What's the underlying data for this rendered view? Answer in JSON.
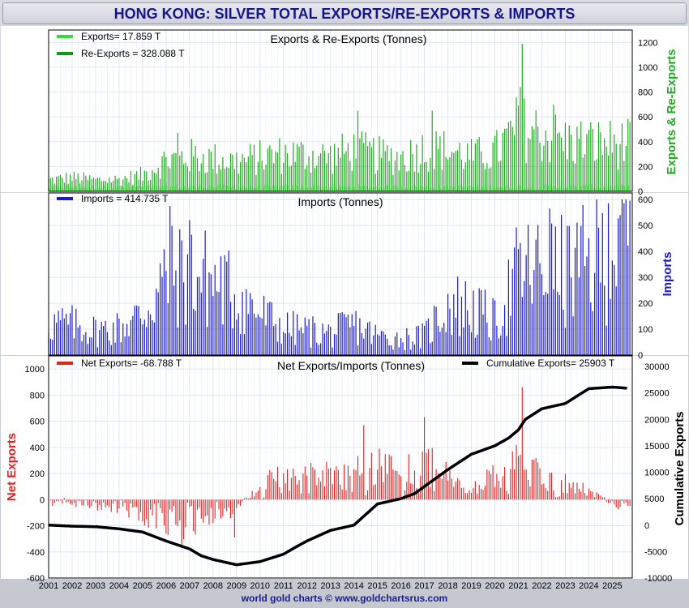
{
  "title": "HONG KONG: SILVER TOTAL EXPORTS/RE-EXPORTS & IMPORTS",
  "footer": "world gold charts © www.goldchartsrus.com",
  "chart_data": [
    {
      "type": "bar",
      "panel": "exports",
      "title": "Exports & Re-Exports (Tonnes)",
      "ylabel": "Exports & Re-Exports",
      "ylim": [
        0,
        1300
      ],
      "yticks": [
        0,
        200,
        400,
        600,
        800,
        1000,
        1200
      ],
      "ytick_labels": [
        "0",
        "200",
        "400",
        "600",
        "800",
        "1000",
        "1200"
      ],
      "legend": [
        {
          "label": "Exports= 17.859 T",
          "color": "#33dd33"
        },
        {
          "label": "Re-Exports = 328.088 T",
          "color": "#119911"
        }
      ],
      "series": [
        {
          "name": "Exports",
          "color": "#33dd33",
          "note": "monthly, small values"
        },
        {
          "name": "Re-Exports",
          "color": "#119911",
          "note": "monthly"
        }
      ],
      "anchors_year_level": [
        [
          2001,
          90
        ],
        [
          2002,
          110
        ],
        [
          2003,
          90
        ],
        [
          2004,
          95
        ],
        [
          2005,
          130
        ],
        [
          2006,
          250
        ],
        [
          2007,
          280
        ],
        [
          2008,
          260
        ],
        [
          2009,
          240
        ],
        [
          2010,
          270
        ],
        [
          2011,
          300
        ],
        [
          2012,
          290
        ],
        [
          2013,
          280
        ],
        [
          2014,
          330
        ],
        [
          2015,
          290
        ],
        [
          2016,
          270
        ],
        [
          2017,
          340
        ],
        [
          2018,
          330
        ],
        [
          2019,
          280
        ],
        [
          2020,
          310
        ],
        [
          2021,
          520
        ],
        [
          2022,
          460
        ],
        [
          2023,
          400
        ],
        [
          2024,
          390
        ],
        [
          2025.6,
          380
        ]
      ],
      "peaks": [
        {
          "x": 2021.2,
          "value": 1190
        },
        {
          "x": 2021.1,
          "value": 840
        },
        {
          "x": 2006.5,
          "value": 470
        },
        {
          "x": 2014.2,
          "value": 650
        },
        {
          "x": 2017.3,
          "value": 650
        },
        {
          "x": 2022.5,
          "value": 700
        }
      ]
    },
    {
      "type": "bar",
      "panel": "imports",
      "title": "Imports (Tonnes)",
      "ylabel": "Imports",
      "ylim": [
        0,
        600
      ],
      "yticks": [
        0,
        100,
        200,
        300,
        400,
        500,
        600
      ],
      "ytick_labels": [
        "0",
        "100",
        "200",
        "300",
        "400",
        "500",
        "600"
      ],
      "legend": [
        {
          "label": "Imports = 414.735 T",
          "color": "#1a1acc"
        }
      ],
      "series": [
        {
          "name": "Imports",
          "color": "#1a1acc"
        }
      ],
      "anchors_year_level": [
        [
          2001,
          120
        ],
        [
          2002,
          110
        ],
        [
          2003,
          90
        ],
        [
          2004,
          100
        ],
        [
          2005,
          150
        ],
        [
          2006,
          280
        ],
        [
          2007,
          300
        ],
        [
          2008,
          270
        ],
        [
          2009,
          220
        ],
        [
          2010,
          150
        ],
        [
          2011,
          100
        ],
        [
          2012,
          90
        ],
        [
          2013,
          80
        ],
        [
          2014,
          110
        ],
        [
          2015,
          70
        ],
        [
          2016,
          60
        ],
        [
          2017,
          70
        ],
        [
          2018,
          190
        ],
        [
          2019,
          170
        ],
        [
          2020,
          120
        ],
        [
          2021,
          300
        ],
        [
          2022,
          310
        ],
        [
          2023,
          300
        ],
        [
          2024,
          330
        ],
        [
          2025.6,
          430
        ]
      ],
      "peaks": [
        {
          "x": 2006.2,
          "value": 575
        },
        {
          "x": 2007.0,
          "value": 520
        },
        {
          "x": 2024.8,
          "value": 585
        },
        {
          "x": 2025.3,
          "value": 540
        },
        {
          "x": 2022.3,
          "value": 565
        }
      ]
    },
    {
      "type": "bar+line",
      "panel": "net",
      "title": "Net Exports/Imports (Tonnes)",
      "ylabel": "Net Exports",
      "ylabel_right": "Cumulative Exports",
      "ylim": [
        -600,
        1100
      ],
      "yticks": [
        -600,
        -400,
        -200,
        0,
        200,
        400,
        600,
        800,
        1000
      ],
      "ytick_labels": [
        "-600",
        "-400",
        "-200",
        "0",
        "200",
        "400",
        "600",
        "800",
        "1000"
      ],
      "ylim_right": [
        -10000,
        32000
      ],
      "yticks_right": [
        -10000,
        -5000,
        0,
        5000,
        10000,
        15000,
        20000,
        25000,
        30000
      ],
      "ytick_labels_right": [
        "-10000",
        "-5000",
        "0",
        "5000",
        "10000",
        "15000",
        "20000",
        "25000",
        "30000"
      ],
      "legend": [
        {
          "label": "Net Exports= -68.788 T",
          "color": "#dd2222"
        },
        {
          "label": "Cumulative Exports= 25903 T",
          "color": "#000000"
        }
      ],
      "net_anchors": [
        [
          2001,
          -20
        ],
        [
          2002,
          -30
        ],
        [
          2003,
          -40
        ],
        [
          2004,
          -60
        ],
        [
          2005,
          -100
        ],
        [
          2006,
          -180
        ],
        [
          2007,
          -180
        ],
        [
          2008,
          -120
        ],
        [
          2009,
          -60
        ],
        [
          2010,
          100
        ],
        [
          2011,
          150
        ],
        [
          2012,
          180
        ],
        [
          2013,
          180
        ],
        [
          2014,
          200
        ],
        [
          2015,
          220
        ],
        [
          2016,
          190
        ],
        [
          2017,
          260
        ],
        [
          2018,
          150
        ],
        [
          2019,
          80
        ],
        [
          2020,
          170
        ],
        [
          2021,
          240
        ],
        [
          2022,
          150
        ],
        [
          2023,
          110
        ],
        [
          2024,
          60
        ],
        [
          2025.6,
          -70
        ]
      ],
      "net_peaks": [
        {
          "x": 2021.2,
          "value": 860
        },
        {
          "x": 2017.0,
          "value": 630
        },
        {
          "x": 2014.4,
          "value": 570
        },
        {
          "x": 2006.7,
          "value": -350
        },
        {
          "x": 2008.9,
          "value": -290
        }
      ],
      "cumulative": [
        [
          2001,
          0
        ],
        [
          2002,
          -200
        ],
        [
          2003,
          -300
        ],
        [
          2004,
          -700
        ],
        [
          2005,
          -1300
        ],
        [
          2006,
          -3000
        ],
        [
          2007,
          -4500
        ],
        [
          2007.5,
          -5800
        ],
        [
          2008,
          -6500
        ],
        [
          2009,
          -7500
        ],
        [
          2010,
          -6900
        ],
        [
          2011,
          -5500
        ],
        [
          2011.5,
          -4200
        ],
        [
          2012,
          -3000
        ],
        [
          2013,
          -1000
        ],
        [
          2014,
          0
        ],
        [
          2015,
          4000
        ],
        [
          2016,
          5000
        ],
        [
          2016.6,
          6000
        ],
        [
          2017,
          7300
        ],
        [
          2018,
          10500
        ],
        [
          2019,
          13400
        ],
        [
          2020,
          15000
        ],
        [
          2020.6,
          16500
        ],
        [
          2021,
          18000
        ],
        [
          2021.3,
          20000
        ],
        [
          2022,
          22000
        ],
        [
          2023,
          23000
        ],
        [
          2024,
          25800
        ],
        [
          2025,
          26100
        ],
        [
          2025.6,
          25903
        ]
      ]
    }
  ],
  "x_axis": {
    "range": [
      2001,
      2025.85
    ],
    "tick_labels": [
      "2001",
      "2002",
      "2003",
      "2004",
      "2005",
      "2006",
      "2007",
      "2008",
      "2009",
      "2010",
      "2011",
      "2012",
      "2013",
      "2014",
      "2015",
      "2016",
      "2017",
      "2018",
      "2019",
      "2020",
      "2021",
      "2022",
      "2023",
      "2024",
      "2025"
    ]
  }
}
